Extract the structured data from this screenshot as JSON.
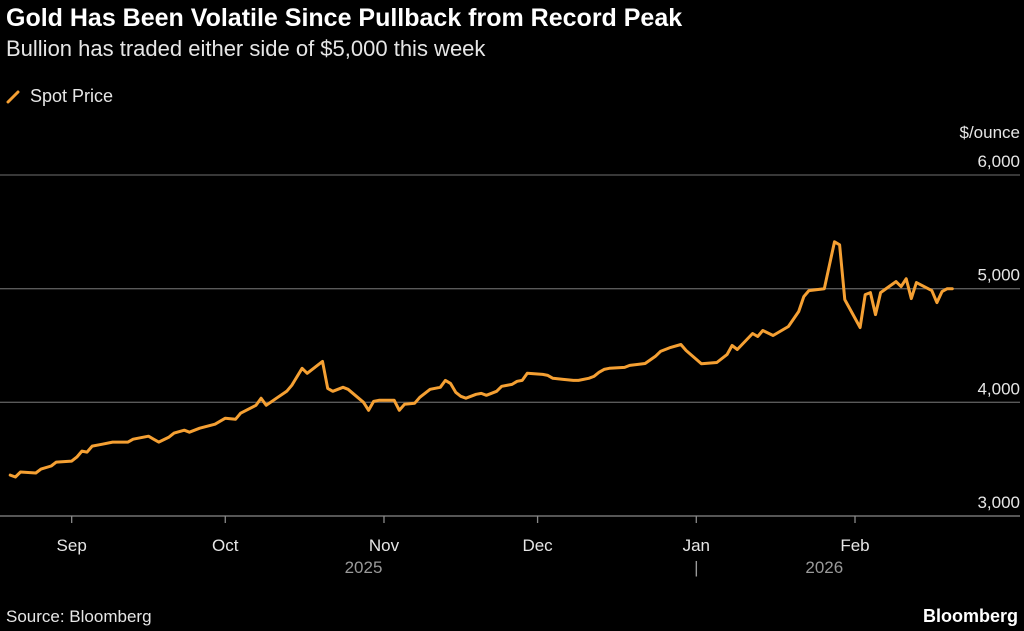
{
  "title": "Gold Has Been Volatile Since Pullback from Record Peak",
  "subtitle": "Bullion has traded either side of $5,000 this week",
  "source": "Source: Bloomberg",
  "logo": "Bloomberg",
  "chart_data": {
    "type": "line",
    "unit_label": "$/ounce",
    "ylim": [
      3000,
      6000
    ],
    "yticks": [
      3000,
      4000,
      5000,
      6000
    ],
    "ytick_labels": [
      "3,000",
      "4,000",
      "5,000",
      "6,000"
    ],
    "xlim": [
      "2025-08-18",
      "2026-02-26"
    ],
    "xticks": [
      {
        "date": "2025-09-01",
        "label": "Sep"
      },
      {
        "date": "2025-10-01",
        "label": "Oct"
      },
      {
        "date": "2025-11-01",
        "label": "Nov"
      },
      {
        "date": "2025-12-01",
        "label": "Dec"
      },
      {
        "date": "2026-01-01",
        "label": "Jan"
      },
      {
        "date": "2026-02-01",
        "label": "Feb"
      }
    ],
    "year_labels": [
      {
        "date": "2025-10-28",
        "label": "2025"
      },
      {
        "date": "2026-01-26",
        "label": "2026"
      }
    ],
    "year_separator": "|",
    "grid": true,
    "legend_position": "top-left",
    "series": [
      {
        "name": "Spot Price",
        "color": "#f5a033",
        "points": [
          [
            "2025-08-20",
            3360
          ],
          [
            "2025-08-21",
            3343
          ],
          [
            "2025-08-22",
            3387
          ],
          [
            "2025-08-25",
            3378
          ],
          [
            "2025-08-26",
            3413
          ],
          [
            "2025-08-28",
            3440
          ],
          [
            "2025-08-29",
            3474
          ],
          [
            "2025-09-01",
            3483
          ],
          [
            "2025-09-02",
            3518
          ],
          [
            "2025-09-03",
            3571
          ],
          [
            "2025-09-04",
            3562
          ],
          [
            "2025-09-05",
            3615
          ],
          [
            "2025-09-07",
            3632
          ],
          [
            "2025-09-09",
            3650
          ],
          [
            "2025-09-10",
            3650
          ],
          [
            "2025-09-12",
            3650
          ],
          [
            "2025-09-13",
            3676
          ],
          [
            "2025-09-16",
            3702
          ],
          [
            "2025-09-17",
            3676
          ],
          [
            "2025-09-18",
            3650
          ],
          [
            "2025-09-20",
            3694
          ],
          [
            "2025-09-21",
            3729
          ],
          [
            "2025-09-23",
            3755
          ],
          [
            "2025-09-24",
            3737
          ],
          [
            "2025-09-26",
            3772
          ],
          [
            "2025-09-29",
            3808
          ],
          [
            "2025-10-01",
            3860
          ],
          [
            "2025-10-03",
            3851
          ],
          [
            "2025-10-04",
            3904
          ],
          [
            "2025-10-07",
            3974
          ],
          [
            "2025-10-08",
            4036
          ],
          [
            "2025-10-09",
            3974
          ],
          [
            "2025-10-11",
            4036
          ],
          [
            "2025-10-13",
            4097
          ],
          [
            "2025-10-14",
            4150
          ],
          [
            "2025-10-16",
            4299
          ],
          [
            "2025-10-17",
            4255
          ],
          [
            "2025-10-20",
            4360
          ],
          [
            "2025-10-21",
            4123
          ],
          [
            "2025-10-22",
            4097
          ],
          [
            "2025-10-24",
            4132
          ],
          [
            "2025-10-25",
            4115
          ],
          [
            "2025-10-28",
            4000
          ],
          [
            "2025-10-29",
            3930
          ],
          [
            "2025-10-30",
            4009
          ],
          [
            "2025-10-31",
            4018
          ],
          [
            "2025-11-03",
            4018
          ],
          [
            "2025-11-04",
            3930
          ],
          [
            "2025-11-05",
            3983
          ],
          [
            "2025-11-07",
            3992
          ],
          [
            "2025-11-08",
            4044
          ],
          [
            "2025-11-10",
            4115
          ],
          [
            "2025-11-12",
            4132
          ],
          [
            "2025-11-13",
            4193
          ],
          [
            "2025-11-14",
            4167
          ],
          [
            "2025-11-15",
            4088
          ],
          [
            "2025-11-16",
            4053
          ],
          [
            "2025-11-17",
            4036
          ],
          [
            "2025-11-19",
            4071
          ],
          [
            "2025-11-20",
            4079
          ],
          [
            "2025-11-21",
            4062
          ],
          [
            "2025-11-23",
            4097
          ],
          [
            "2025-11-24",
            4141
          ],
          [
            "2025-11-26",
            4158
          ],
          [
            "2025-11-27",
            4185
          ],
          [
            "2025-11-28",
            4193
          ],
          [
            "2025-11-29",
            4255
          ],
          [
            "2025-12-02",
            4246
          ],
          [
            "2025-12-03",
            4237
          ],
          [
            "2025-12-04",
            4211
          ],
          [
            "2025-12-06",
            4202
          ],
          [
            "2025-12-08",
            4193
          ],
          [
            "2025-12-09",
            4193
          ],
          [
            "2025-12-11",
            4211
          ],
          [
            "2025-12-12",
            4228
          ],
          [
            "2025-12-13",
            4264
          ],
          [
            "2025-12-14",
            4290
          ],
          [
            "2025-12-15",
            4299
          ],
          [
            "2025-12-18",
            4307
          ],
          [
            "2025-12-19",
            4325
          ],
          [
            "2025-12-22",
            4342
          ],
          [
            "2025-12-24",
            4404
          ],
          [
            "2025-12-25",
            4448
          ],
          [
            "2025-12-27",
            4483
          ],
          [
            "2025-12-29",
            4509
          ],
          [
            "2025-12-30",
            4456
          ],
          [
            "2026-01-02",
            4340
          ],
          [
            "2026-01-05",
            4350
          ],
          [
            "2026-01-07",
            4420
          ],
          [
            "2026-01-08",
            4500
          ],
          [
            "2026-01-09",
            4465
          ],
          [
            "2026-01-12",
            4606
          ],
          [
            "2026-01-13",
            4579
          ],
          [
            "2026-01-14",
            4632
          ],
          [
            "2026-01-16",
            4588
          ],
          [
            "2026-01-19",
            4667
          ],
          [
            "2026-01-21",
            4799
          ],
          [
            "2026-01-22",
            4930
          ],
          [
            "2026-01-23",
            4983
          ],
          [
            "2026-01-26",
            5000
          ],
          [
            "2026-01-28",
            5412
          ],
          [
            "2026-01-29",
            5386
          ],
          [
            "2026-01-30",
            4904
          ],
          [
            "2026-02-02",
            4658
          ],
          [
            "2026-02-03",
            4948
          ],
          [
            "2026-02-04",
            4965
          ],
          [
            "2026-02-05",
            4772
          ],
          [
            "2026-02-06",
            4965
          ],
          [
            "2026-02-09",
            5062
          ],
          [
            "2026-02-10",
            5018
          ],
          [
            "2026-02-11",
            5088
          ],
          [
            "2026-02-12",
            4913
          ],
          [
            "2026-02-13",
            5053
          ],
          [
            "2026-02-16",
            4983
          ],
          [
            "2026-02-17",
            4877
          ],
          [
            "2026-02-18",
            4974
          ],
          [
            "2026-02-19",
            5000
          ],
          [
            "2026-02-20",
            5000
          ]
        ]
      }
    ]
  }
}
